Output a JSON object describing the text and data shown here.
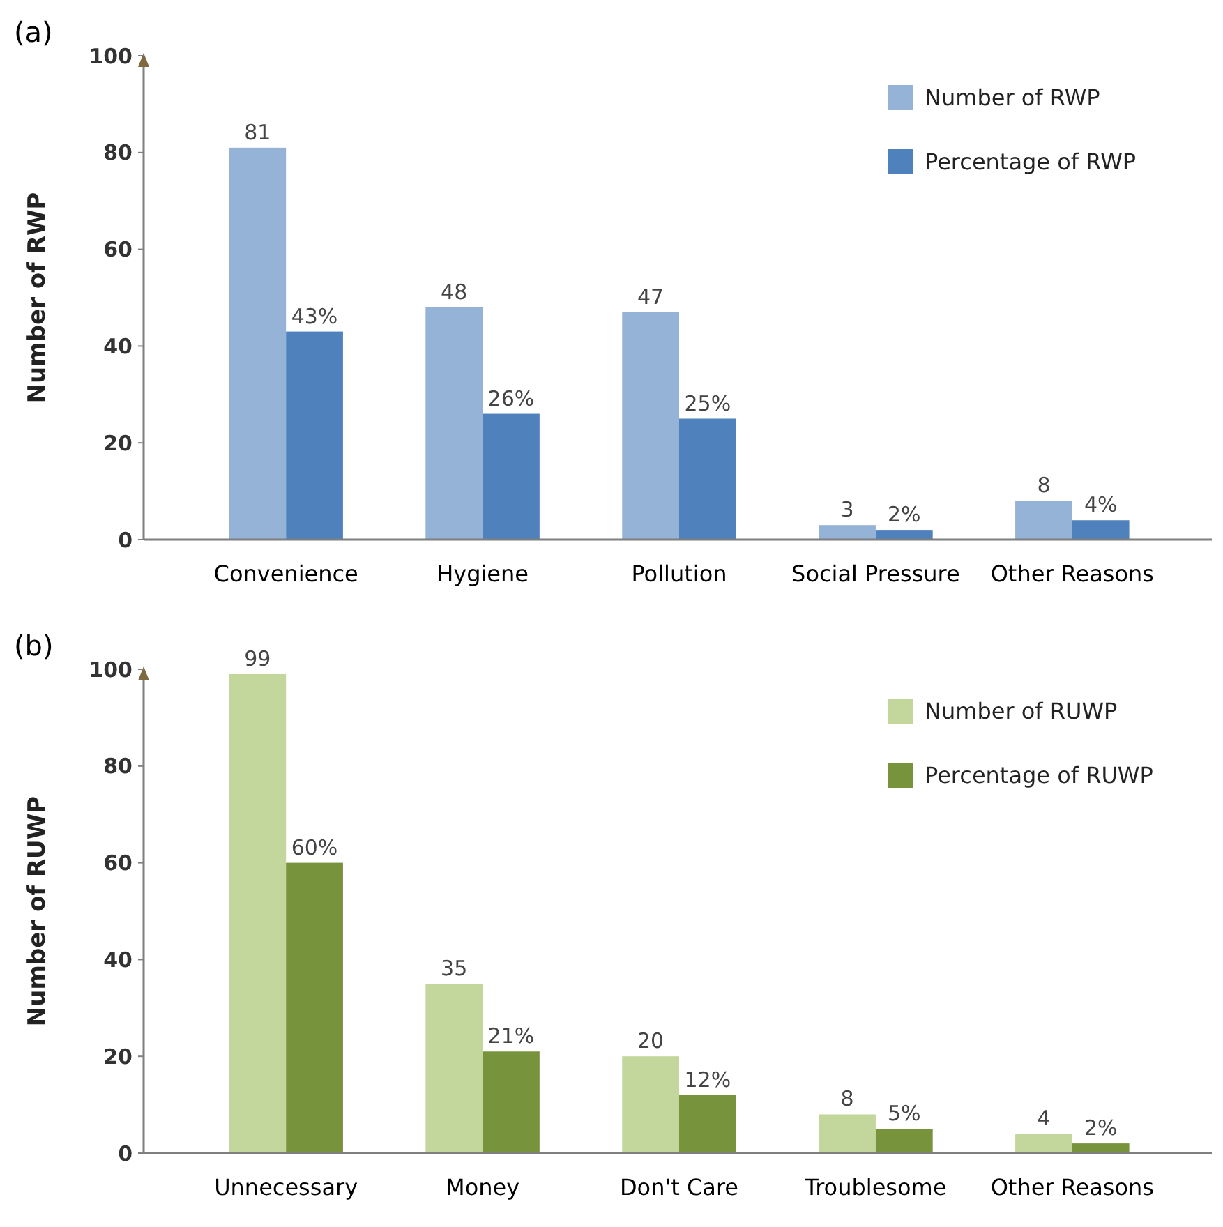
{
  "chart_data": [
    {
      "type": "bar",
      "title": "(a)",
      "ylabel": "Number of RWP",
      "categories": [
        "Convenience",
        "Hygiene",
        "Pollution",
        "Social Pressure",
        "Other Reasons"
      ],
      "ylim": [
        0,
        100
      ],
      "yticks": [
        0,
        20,
        40,
        60,
        80,
        100
      ],
      "legend": "top right",
      "grid": false,
      "series": [
        {
          "name": "Number of RWP",
          "color": "#95b3d7",
          "values": [
            81,
            48,
            47,
            3,
            8
          ],
          "value_labels": [
            "81",
            "48",
            "47",
            "3",
            "8"
          ]
        },
        {
          "name": "Percentage of RWP",
          "color": "#4f81bd",
          "values": [
            43,
            26,
            25,
            2,
            4
          ],
          "value_labels": [
            "43%",
            "26%",
            "25%",
            "2%",
            "4%"
          ]
        }
      ]
    },
    {
      "type": "bar",
      "title": "(b)",
      "ylabel": "Number of RUWP",
      "categories": [
        "Unnecessary",
        "Money",
        "Don't Care",
        "Troublesome",
        "Other Reasons"
      ],
      "ylim": [
        0,
        100
      ],
      "yticks": [
        0,
        20,
        40,
        60,
        80,
        100
      ],
      "legend": "top right",
      "grid": false,
      "series": [
        {
          "name": "Number of RUWP",
          "color": "#c3d69b",
          "values": [
            99,
            35,
            20,
            8,
            4
          ],
          "value_labels": [
            "99",
            "35",
            "20",
            "8",
            "4"
          ]
        },
        {
          "name": "Percentage of RUWP",
          "color": "#77933c",
          "values": [
            60,
            21,
            12,
            5,
            2
          ],
          "value_labels": [
            "60%",
            "21%",
            "12%",
            "5%",
            "2%"
          ]
        }
      ]
    }
  ]
}
